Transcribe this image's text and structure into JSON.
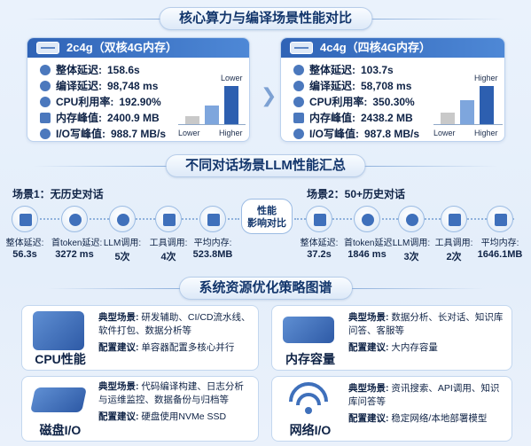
{
  "title_top": "核心算力与编译场景性能对比",
  "left_card": {
    "header": "2c4g（双核4G内存）",
    "metrics": [
      {
        "label": "整体延迟:",
        "value": "158.6s"
      },
      {
        "label": "编译延迟:",
        "value": "98,748 ms"
      },
      {
        "label": "CPU利用率:",
        "value": "192.90%"
      },
      {
        "label": "内存峰值:",
        "value": "2400.9 MB"
      },
      {
        "label": "I/O写峰值:",
        "value": "988.7 MB/s"
      }
    ],
    "chart": {
      "top": "Lower",
      "low": "Lower",
      "high": "Higher"
    }
  },
  "right_card": {
    "header": "4c4g（四核4G内存）",
    "metrics": [
      {
        "label": "整体延迟:",
        "value": "103.7s"
      },
      {
        "label": "编译延迟:",
        "value": "58,708 ms"
      },
      {
        "label": "CPU利用率:",
        "value": "350.30%"
      },
      {
        "label": "内存峰值:",
        "value": "2438.2 MB"
      },
      {
        "label": "I/O写峰值:",
        "value": "987.8 MB/s"
      }
    ],
    "chart": {
      "top": "Higher",
      "low": "Lower",
      "high": "Higher"
    }
  },
  "title_mid": "不同对话场景LLM性能汇总",
  "scenario1": {
    "label": "场景1：无历史对话",
    "items": [
      {
        "cap": "整体延迟:",
        "num": "56.3s"
      },
      {
        "cap": "首token延迟:",
        "num": "3272 ms"
      },
      {
        "cap": "LLM调用:",
        "num": "5次"
      },
      {
        "cap": "工具调用:",
        "num": "4次"
      },
      {
        "cap": "平均内存:",
        "num": "523.8MB"
      }
    ]
  },
  "scenario2": {
    "label": "场景2：50+历史对话",
    "items": [
      {
        "cap": "整体延迟:",
        "num": "37.2s"
      },
      {
        "cap": "首token延迟:",
        "num": "1846 ms"
      },
      {
        "cap": "LLM调用:",
        "num": "3次"
      },
      {
        "cap": "工具调用:",
        "num": "2次"
      },
      {
        "cap": "平均内存:",
        "num": "1646.1MB"
      }
    ]
  },
  "center_badge": {
    "line1": "性能",
    "line2": "影响对比"
  },
  "title_bottom": "系统资源优化策略图谱",
  "resources": [
    {
      "name": "CPU性能",
      "scene_label": "典型场景:",
      "scene": "研发辅助、CI/CD流水线、软件打包、数据分析等",
      "advice_label": "配置建议:",
      "advice": "单容器配置多核心并行"
    },
    {
      "name": "内存容量",
      "scene_label": "典型场景:",
      "scene": "数据分析、长对话、知识库问答、客服等",
      "advice_label": "配置建议:",
      "advice": "大内存容量"
    },
    {
      "name": "磁盘I/O",
      "scene_label": "典型场景:",
      "scene": "代码编译构建、日志分析与运维监控、数据备份与归档等",
      "advice_label": "配置建议:",
      "advice": "硬盘使用NVMe SSD"
    },
    {
      "name": "网络I/O",
      "scene_label": "典型场景:",
      "scene": "资讯搜索、API调用、知识库问答等",
      "advice_label": "配置建议:",
      "advice": "稳定网络/本地部署模型"
    }
  ],
  "colors": {
    "accent": "#2f63b6",
    "bar_light": "#c9c9c9",
    "bar_mid": "#7ea6dd",
    "bar_dark": "#2d5fb0"
  }
}
